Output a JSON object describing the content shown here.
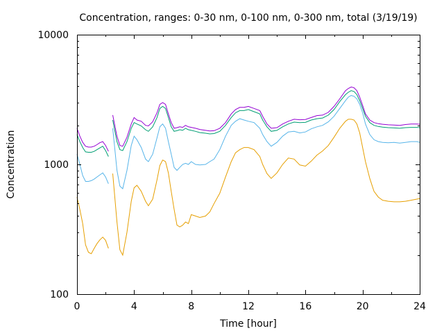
{
  "chart_data": {
    "type": "line",
    "title": "Concentration, ranges: 0-30 nm, 0-100 nm, 0-300 nm, total (3/19/19)",
    "xlabel": "Time [hour]",
    "ylabel": "Concentration",
    "xlim": [
      0,
      24
    ],
    "ylim": [
      100,
      10000
    ],
    "yscale": "log",
    "grid": false,
    "legend": "none",
    "x_ticks": [
      0,
      4,
      8,
      12,
      16,
      20,
      24
    ],
    "y_ticks": [
      100,
      1000,
      10000
    ],
    "x_tick_labels": [
      "0",
      "4",
      "8",
      "12",
      "16",
      "20",
      "24"
    ],
    "y_tick_labels": [
      "100",
      "1000",
      "10000"
    ],
    "series": [
      {
        "color": "#e69f00",
        "segments": [
          {
            "x": [
              0,
              0.2,
              0.4,
              0.6,
              0.8,
              1.0,
              1.2,
              1.4,
              1.6,
              1.8,
              2.0,
              2.2
            ],
            "y": [
              560,
              450,
              350,
              240,
              210,
              205,
              225,
              245,
              262,
              275,
              260,
              225
            ]
          },
          {
            "x": [
              2.5,
              2.8,
              3.0,
              3.2,
              3.5,
              3.8,
              4.0,
              4.2,
              4.5,
              4.8,
              5.0,
              5.3,
              5.6,
              5.8,
              6.0,
              6.2,
              6.4,
              6.6,
              6.8,
              7.0,
              7.2,
              7.4,
              7.6,
              7.8,
              8.0,
              8.3,
              8.6,
              9.0,
              9.3,
              9.6,
              10.0,
              10.4,
              10.8,
              11.1,
              11.4,
              11.7,
              12.0,
              12.4,
              12.8,
              13.0,
              13.3,
              13.6,
              14.0,
              14.4,
              14.8,
              15.2,
              15.6,
              16.0,
              16.4,
              16.8,
              17.2,
              17.6,
              18.0,
              18.4,
              18.8,
              19.0,
              19.2,
              19.4,
              19.6,
              19.8,
              20.0,
              20.2,
              20.5,
              20.8,
              21.1,
              21.4,
              21.8,
              22.2,
              22.6,
              23.0,
              23.4,
              23.8,
              24.0
            ],
            "y": [
              850,
              360,
              220,
              200,
              300,
              520,
              660,
              690,
              620,
              520,
              480,
              540,
              760,
              980,
              1080,
              1050,
              860,
              620,
              450,
              340,
              330,
              340,
              360,
              350,
              410,
              400,
              390,
              400,
              430,
              500,
              600,
              800,
              1050,
              1230,
              1300,
              1350,
              1350,
              1300,
              1150,
              1000,
              850,
              780,
              860,
              1000,
              1120,
              1100,
              990,
              970,
              1060,
              1180,
              1270,
              1400,
              1620,
              1900,
              2150,
              2230,
              2230,
              2200,
              2050,
              1750,
              1350,
              1050,
              780,
              620,
              560,
              530,
              520,
              515,
              515,
              520,
              530,
              540,
              545
            ]
          }
        ]
      },
      {
        "color": "#56b4e9",
        "segments": [
          {
            "x": [
              0,
              0.2,
              0.4,
              0.6,
              0.8,
              1.0,
              1.2,
              1.4,
              1.6,
              1.8,
              2.0,
              2.2
            ],
            "y": [
              1200,
              1000,
              820,
              740,
              740,
              750,
              770,
              800,
              830,
              860,
              800,
              710
            ]
          },
          {
            "x": [
              2.5,
              2.8,
              3.0,
              3.2,
              3.5,
              3.8,
              4.0,
              4.2,
              4.5,
              4.8,
              5.0,
              5.3,
              5.6,
              5.8,
              6.0,
              6.2,
              6.4,
              6.6,
              6.8,
              7.0,
              7.2,
              7.4,
              7.6,
              7.8,
              8.0,
              8.3,
              8.6,
              9.0,
              9.3,
              9.6,
              10.0,
              10.4,
              10.8,
              11.1,
              11.4,
              11.7,
              12.0,
              12.4,
              12.8,
              13.0,
              13.3,
              13.6,
              14.0,
              14.4,
              14.8,
              15.2,
              15.6,
              16.0,
              16.4,
              16.8,
              17.2,
              17.6,
              18.0,
              18.4,
              18.8,
              19.0,
              19.2,
              19.4,
              19.6,
              19.8,
              20.0,
              20.2,
              20.5,
              20.8,
              21.1,
              21.4,
              21.8,
              22.2,
              22.6,
              23.0,
              23.4,
              23.8,
              24.0
            ],
            "y": [
              1900,
              900,
              680,
              650,
              900,
              1400,
              1650,
              1550,
              1350,
              1100,
              1050,
              1200,
              1600,
              1950,
              2050,
              1900,
              1500,
              1200,
              950,
              900,
              950,
              1000,
              1020,
              1000,
              1050,
              1000,
              990,
              1000,
              1050,
              1100,
              1300,
              1650,
              2000,
              2150,
              2250,
              2200,
              2150,
              2100,
              1900,
              1700,
              1500,
              1380,
              1480,
              1650,
              1780,
              1800,
              1750,
              1780,
              1880,
              1950,
              2000,
              2130,
              2350,
              2700,
              3100,
              3300,
              3400,
              3350,
              3200,
              2900,
              2500,
              2050,
              1700,
              1550,
              1500,
              1480,
              1470,
              1480,
              1460,
              1480,
              1500,
              1500,
              1480
            ]
          }
        ]
      },
      {
        "color": "#009e73",
        "segments": [
          {
            "x": [
              0,
              0.2,
              0.4,
              0.6,
              0.8,
              1.0,
              1.2,
              1.4,
              1.6,
              1.8,
              2.0,
              2.2
            ],
            "y": [
              1700,
              1500,
              1350,
              1250,
              1240,
              1240,
              1260,
              1300,
              1340,
              1380,
              1280,
              1150
            ]
          },
          {
            "x": [
              2.5,
              2.8,
              3.0,
              3.2,
              3.5,
              3.8,
              4.0,
              4.2,
              4.5,
              4.8,
              5.0,
              5.3,
              5.6,
              5.8,
              6.0,
              6.2,
              6.4,
              6.6,
              6.8,
              7.0,
              7.2,
              7.4,
              7.6,
              7.8,
              8.0,
              8.3,
              8.6,
              9.0,
              9.3,
              9.6,
              10.0,
              10.4,
              10.8,
              11.1,
              11.4,
              11.7,
              12.0,
              12.4,
              12.8,
              13.0,
              13.3,
              13.6,
              14.0,
              14.4,
              14.8,
              15.2,
              15.6,
              16.0,
              16.4,
              16.8,
              17.2,
              17.6,
              18.0,
              18.4,
              18.8,
              19.0,
              19.2,
              19.4,
              19.6,
              19.8,
              20.0,
              20.2,
              20.5,
              20.8,
              21.1,
              21.4,
              21.8,
              22.2,
              22.6,
              23.0,
              23.4,
              23.8,
              24.0
            ],
            "y": [
              2200,
              1500,
              1300,
              1280,
              1500,
              1900,
              2100,
              2050,
              1980,
              1850,
              1800,
              1950,
              2300,
              2700,
              2800,
              2700,
              2300,
              1950,
              1800,
              1820,
              1850,
              1830,
              1900,
              1850,
              1830,
              1800,
              1760,
              1740,
              1720,
              1730,
              1800,
              2000,
              2300,
              2500,
              2600,
              2600,
              2650,
              2550,
              2450,
              2200,
              1950,
              1800,
              1830,
              1950,
              2050,
              2120,
              2100,
              2110,
              2200,
              2250,
              2280,
              2400,
              2650,
              3050,
              3450,
              3600,
              3700,
              3650,
              3450,
              3100,
              2700,
              2350,
              2100,
              2000,
              1960,
              1940,
              1920,
              1910,
              1900,
              1920,
              1930,
              1930,
              1920
            ]
          }
        ]
      },
      {
        "color": "#9400d3",
        "segments": [
          {
            "x": [
              0,
              0.2,
              0.4,
              0.6,
              0.8,
              1.0,
              1.2,
              1.4,
              1.6,
              1.8,
              2.0,
              2.2
            ],
            "y": [
              1900,
              1650,
              1480,
              1380,
              1360,
              1360,
              1380,
              1420,
              1470,
              1500,
              1400,
              1260
            ]
          },
          {
            "x": [
              2.5,
              2.8,
              3.0,
              3.2,
              3.5,
              3.8,
              4.0,
              4.2,
              4.5,
              4.8,
              5.0,
              5.3,
              5.6,
              5.8,
              6.0,
              6.2,
              6.4,
              6.6,
              6.8,
              7.0,
              7.2,
              7.4,
              7.6,
              7.8,
              8.0,
              8.3,
              8.6,
              9.0,
              9.3,
              9.6,
              10.0,
              10.4,
              10.8,
              11.1,
              11.4,
              11.7,
              12.0,
              12.4,
              12.8,
              13.0,
              13.3,
              13.6,
              14.0,
              14.4,
              14.8,
              15.2,
              15.6,
              16.0,
              16.4,
              16.8,
              17.2,
              17.6,
              18.0,
              18.4,
              18.8,
              19.0,
              19.2,
              19.4,
              19.6,
              19.8,
              20.0,
              20.2,
              20.5,
              20.8,
              21.1,
              21.4,
              21.8,
              22.2,
              22.6,
              23.0,
              23.4,
              23.8,
              24.0
            ],
            "y": [
              2400,
              1650,
              1400,
              1380,
              1620,
              2050,
              2300,
              2200,
              2150,
              2000,
              1980,
              2130,
              2500,
              2900,
              3000,
              2900,
              2450,
              2100,
              1900,
              1920,
              1950,
              1930,
              2000,
              1950,
              1930,
              1900,
              1860,
              1830,
              1810,
              1820,
              1900,
              2100,
              2450,
              2650,
              2750,
              2750,
              2800,
              2700,
              2600,
              2350,
              2050,
              1900,
              1920,
              2050,
              2150,
              2230,
              2210,
              2220,
              2300,
              2380,
              2400,
              2520,
              2800,
              3200,
              3700,
              3850,
              3950,
              3900,
              3700,
              3300,
              2850,
              2450,
              2200,
              2100,
              2060,
              2040,
              2020,
              2010,
              2000,
              2030,
              2050,
              2050,
              2040
            ]
          }
        ]
      }
    ]
  }
}
